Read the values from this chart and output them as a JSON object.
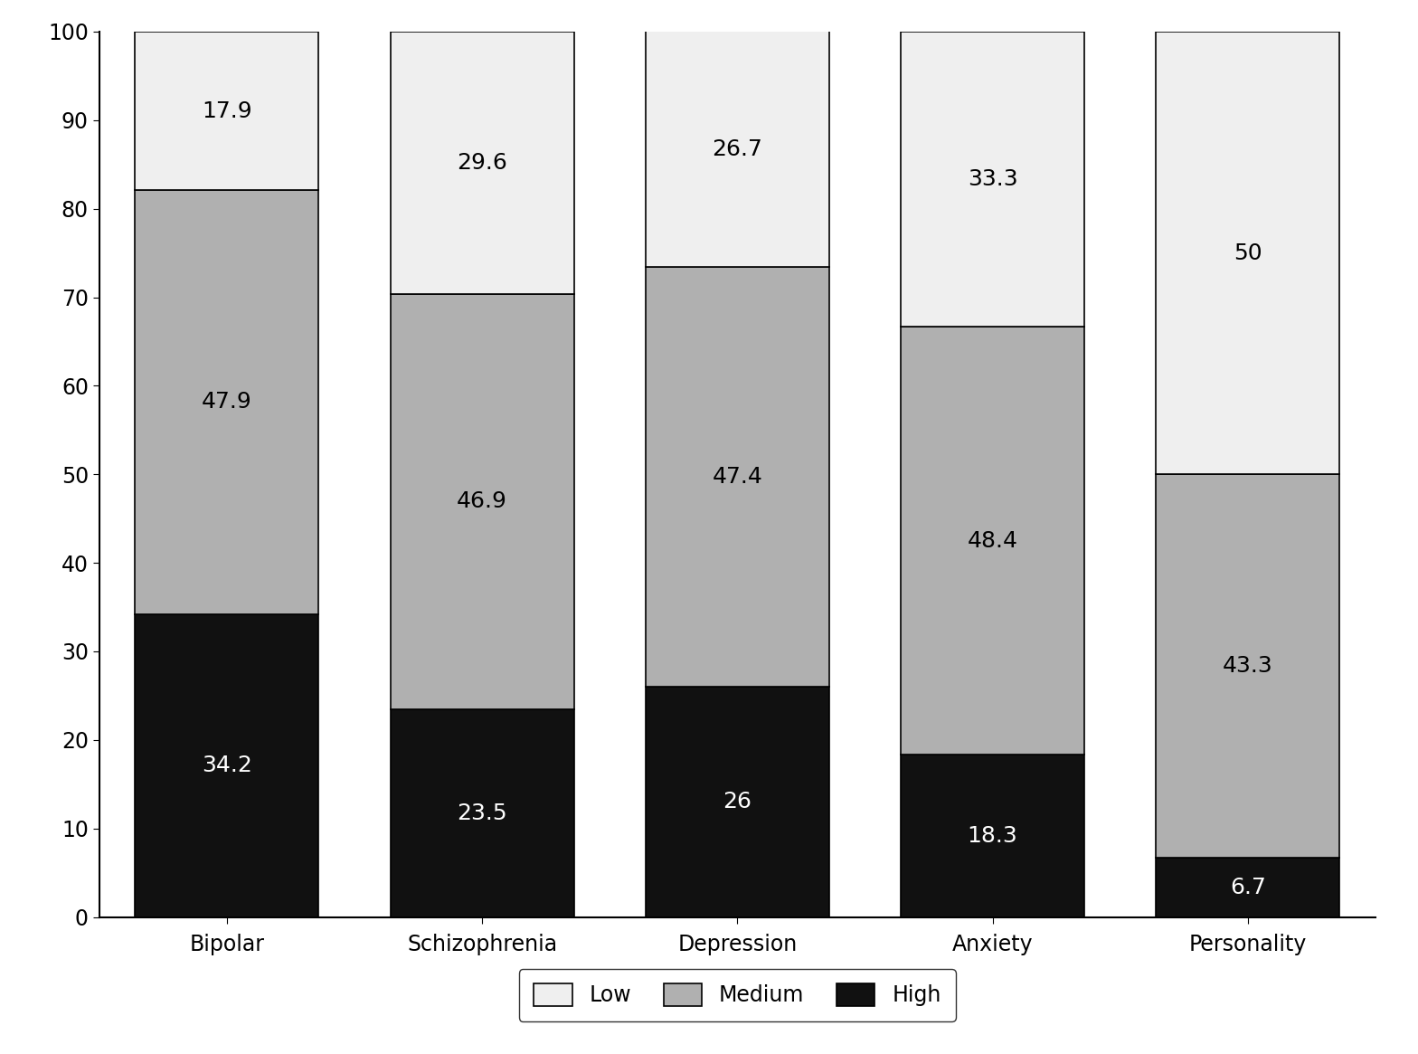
{
  "categories": [
    "Bipolar",
    "Schizophrenia",
    "Depression",
    "Anxiety",
    "Personality"
  ],
  "high": [
    34.2,
    23.5,
    26,
    18.3,
    6.7
  ],
  "medium": [
    47.9,
    46.9,
    47.4,
    48.4,
    43.3
  ],
  "low": [
    17.9,
    29.6,
    26.7,
    33.3,
    50
  ],
  "high_labels": [
    "34.2",
    "23.5",
    "26",
    "18.3",
    "6.7"
  ],
  "medium_labels": [
    "47.9",
    "46.9",
    "47.4",
    "48.4",
    "43.3"
  ],
  "low_labels": [
    "17.9",
    "29.6",
    "26.7",
    "33.3",
    "50"
  ],
  "high_color": "#111111",
  "medium_color": "#b0b0b0",
  "low_color": "#efefef",
  "bar_edge_color": "#000000",
  "bar_width": 0.72,
  "ylim": [
    0,
    100
  ],
  "yticks": [
    0,
    10,
    20,
    30,
    40,
    50,
    60,
    70,
    80,
    90,
    100
  ],
  "legend_labels": [
    "Low",
    "Medium",
    "High"
  ],
  "legend_colors": [
    "#efefef",
    "#b0b0b0",
    "#111111"
  ],
  "label_fontsize": 18,
  "tick_fontsize": 17,
  "legend_fontsize": 17,
  "background_color": "#ffffff"
}
